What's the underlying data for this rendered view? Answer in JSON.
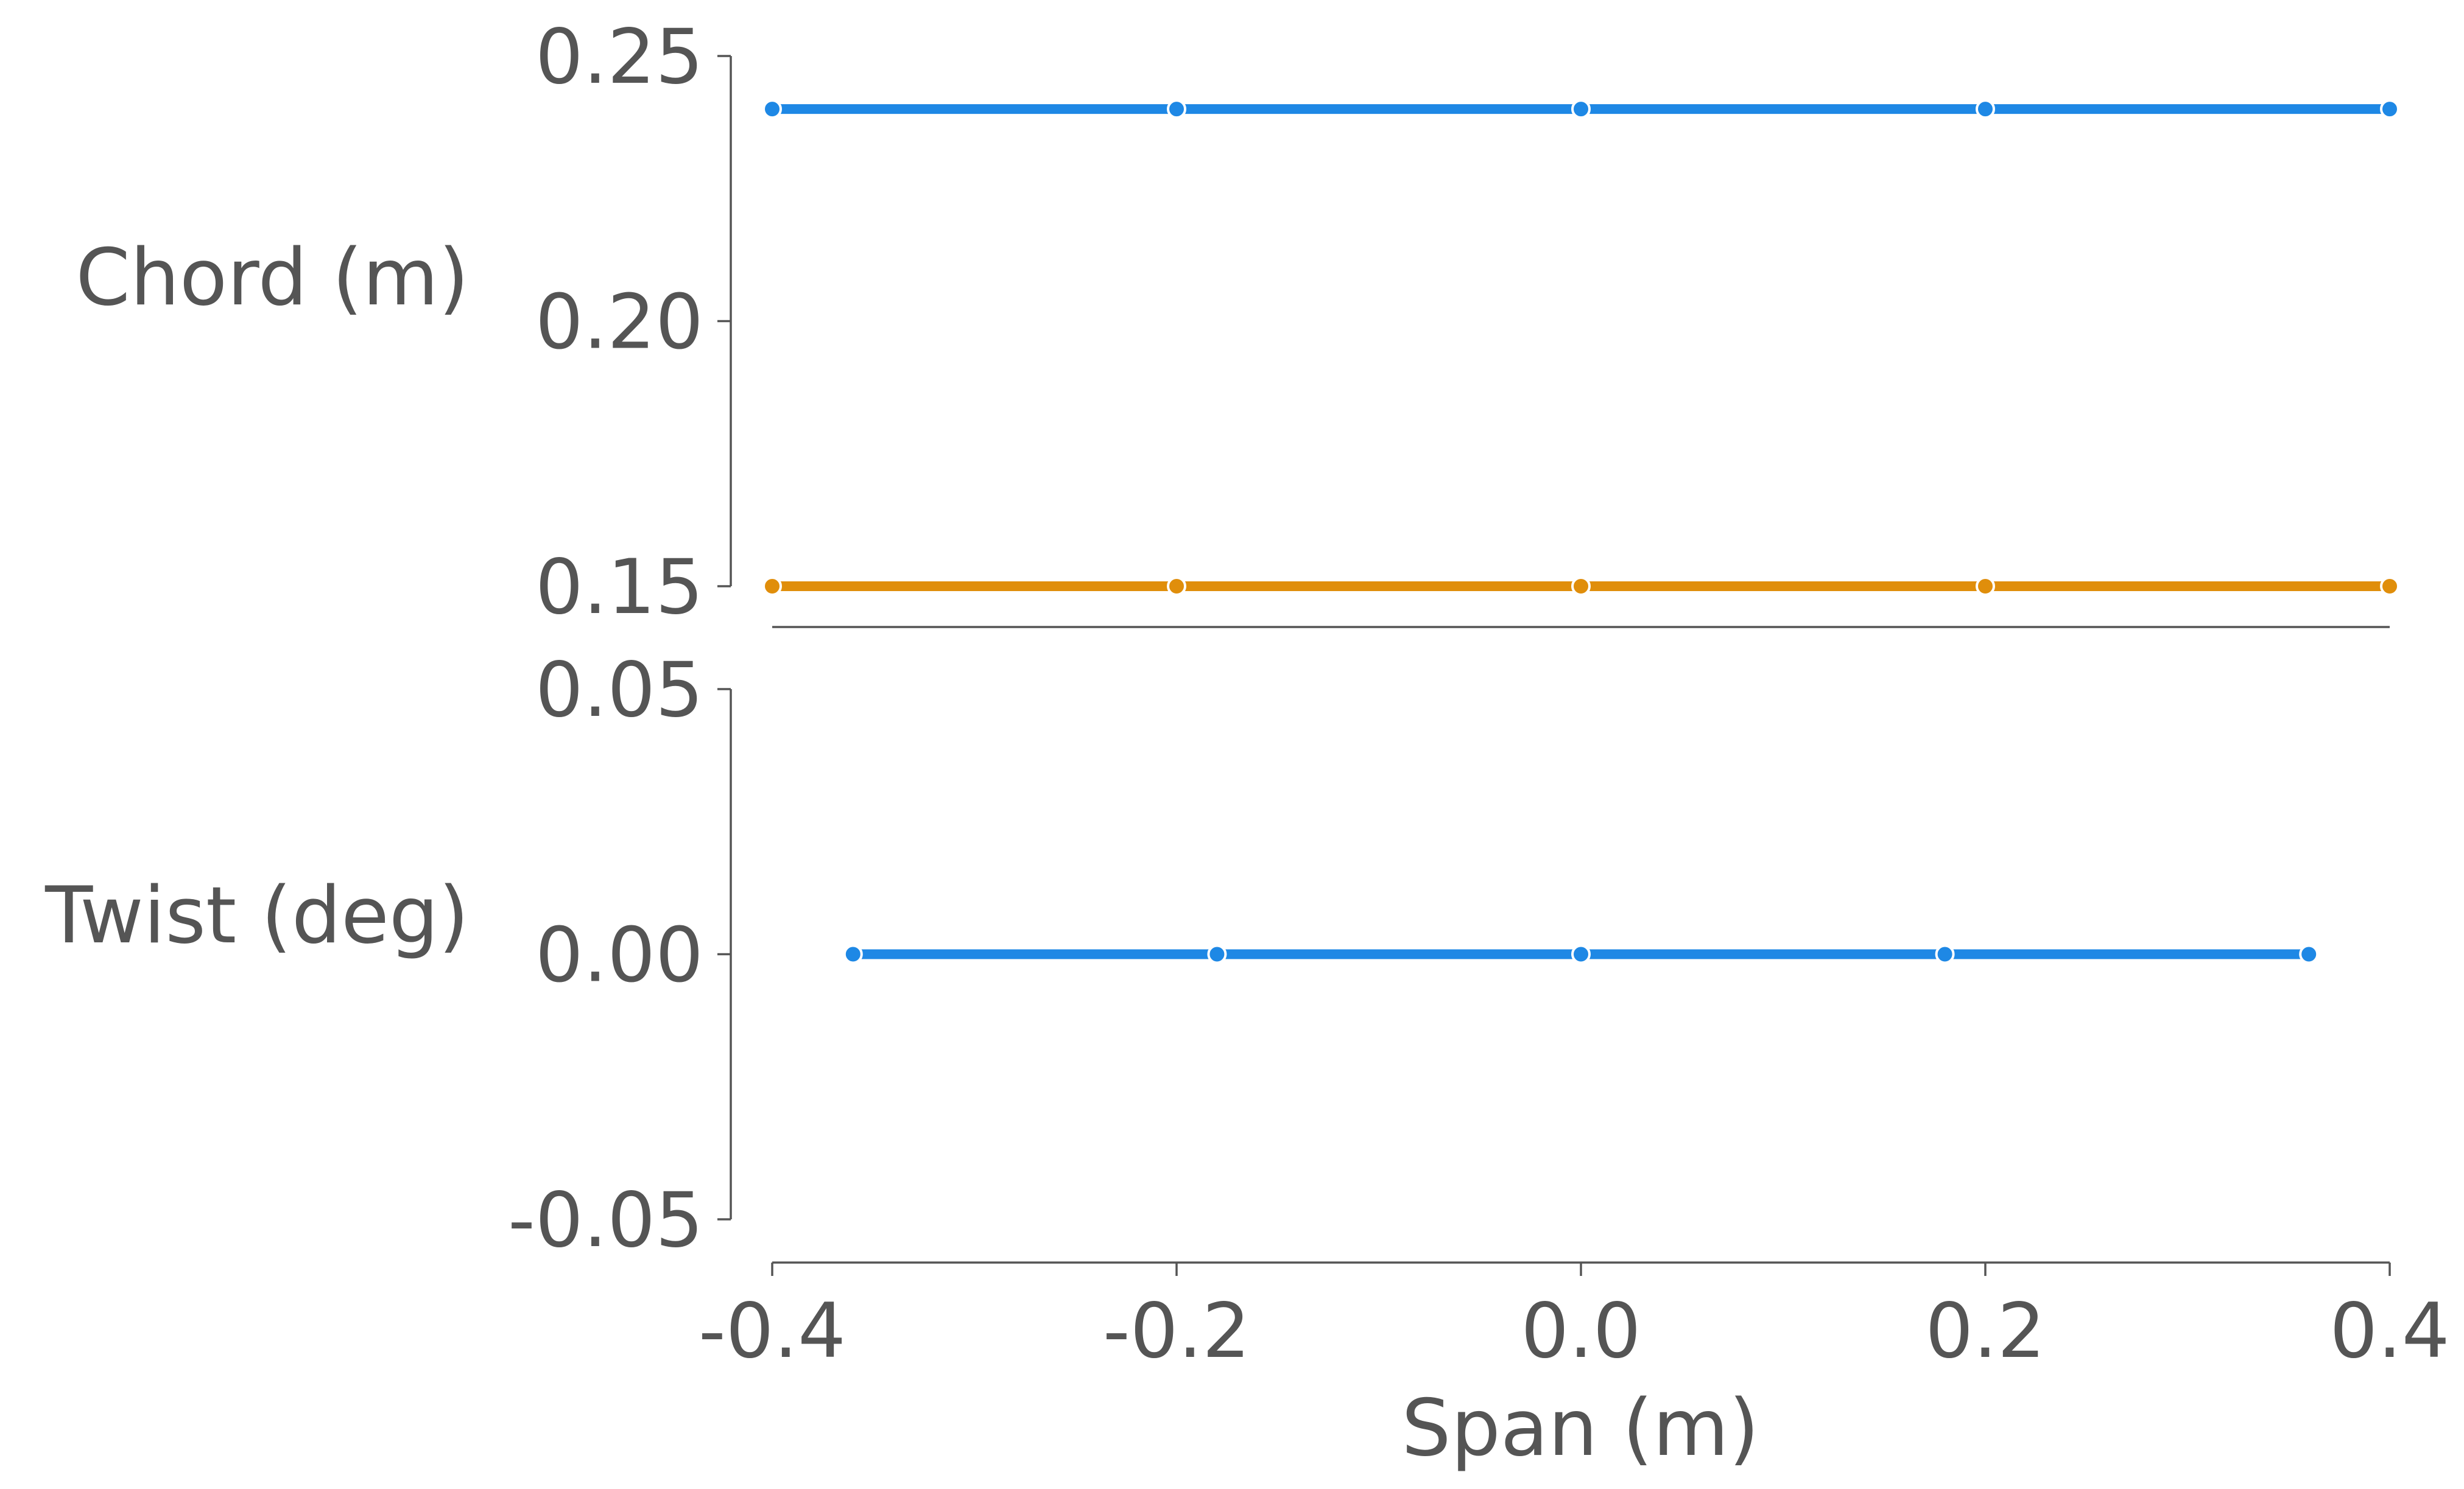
{
  "chart_data": [
    {
      "type": "line",
      "panel": "top",
      "ylabel": "Chord (m)",
      "xlabel": "",
      "ylim": [
        0.15,
        0.25
      ],
      "yticks": [
        "0.15",
        "0.20",
        "0.25"
      ],
      "series": [
        {
          "color": "#1E88E5",
          "x": [
            -0.4,
            -0.2,
            0.0,
            0.2,
            0.4
          ],
          "y": [
            0.24,
            0.24,
            0.24,
            0.24,
            0.24
          ]
        },
        {
          "color": "#E08E0B",
          "x": [
            -0.4,
            -0.2,
            0.0,
            0.2,
            0.4
          ],
          "y": [
            0.15,
            0.15,
            0.15,
            0.15,
            0.15
          ]
        }
      ]
    },
    {
      "type": "line",
      "panel": "bottom",
      "ylabel": "Twist (deg)",
      "xlabel": "Span (m)",
      "ylim": [
        -0.05,
        0.05
      ],
      "yticks": [
        "-0.05",
        "0.00",
        "0.05"
      ],
      "xlim": [
        -0.4,
        0.4
      ],
      "xticks": [
        "-0.4",
        "-0.2",
        "0.0",
        "0.2",
        "0.4"
      ],
      "series": [
        {
          "color": "#1E88E5",
          "x": [
            -0.36,
            -0.18,
            0.0,
            0.18,
            0.36
          ],
          "y": [
            0.0,
            0.0,
            0.0,
            0.0,
            0.0
          ]
        }
      ]
    }
  ]
}
